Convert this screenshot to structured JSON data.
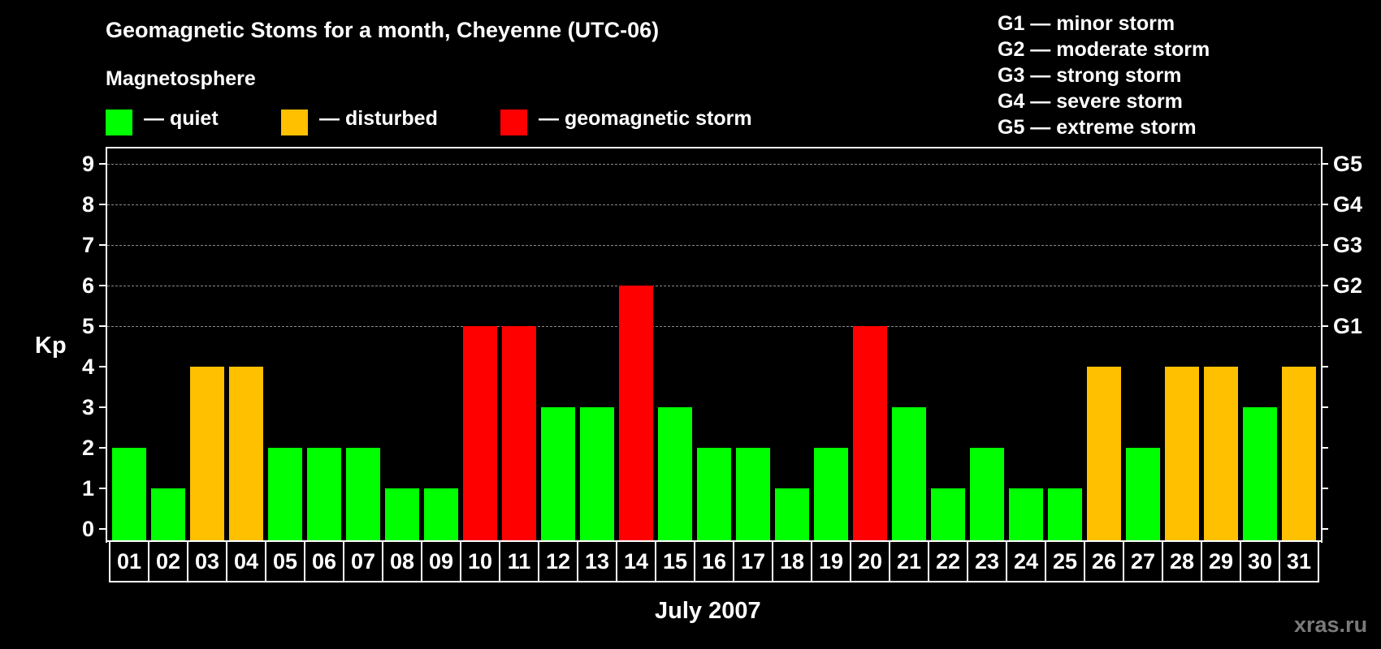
{
  "title": "Geomagnetic Stoms for a month, Cheyenne (UTC-06)",
  "legend": {
    "heading": "Magnetosphere",
    "items": [
      {
        "label": "— quiet",
        "color": "#00ff00"
      },
      {
        "label": "— disturbed",
        "color": "#ffc000"
      },
      {
        "label": "— geomagnetic storm",
        "color": "#ff0000"
      }
    ]
  },
  "storm_scale": [
    "G1 — minor storm",
    "G2 — moderate storm",
    "G3 — strong storm",
    "G4 — severe storm",
    "G5 — extreme storm"
  ],
  "axes": {
    "ylabel": "Kp",
    "xlabel": "July 2007",
    "yticks": [
      "0",
      "1",
      "2",
      "3",
      "4",
      "5",
      "6",
      "7",
      "8",
      "9"
    ],
    "right_ticks": [
      {
        "value": 5,
        "label": "G1"
      },
      {
        "value": 6,
        "label": "G2"
      },
      {
        "value": 7,
        "label": "G3"
      },
      {
        "value": 8,
        "label": "G4"
      },
      {
        "value": 9,
        "label": "G5"
      }
    ]
  },
  "watermark": "xras.ru",
  "colors": {
    "quiet": "#00ff00",
    "disturbed": "#ffc000",
    "storm": "#ff0000",
    "background": "#000000",
    "grid": "#8a8a8a"
  },
  "chart_data": {
    "type": "bar",
    "title": "Geomagnetic Stoms for a month, Cheyenne (UTC-06)",
    "xlabel": "July 2007",
    "ylabel": "Kp",
    "ylim": [
      0,
      9
    ],
    "grid": true,
    "categories": [
      "01",
      "02",
      "03",
      "04",
      "05",
      "06",
      "07",
      "08",
      "09",
      "10",
      "11",
      "12",
      "13",
      "14",
      "15",
      "16",
      "17",
      "18",
      "19",
      "20",
      "21",
      "22",
      "23",
      "24",
      "25",
      "26",
      "27",
      "28",
      "29",
      "30",
      "31"
    ],
    "values": [
      2,
      1,
      4,
      4,
      2,
      2,
      2,
      1,
      1,
      5,
      5,
      3,
      3,
      6,
      3,
      2,
      2,
      1,
      2,
      5,
      3,
      1,
      2,
      1,
      1,
      4,
      2,
      4,
      4,
      3,
      4
    ],
    "status": [
      "quiet",
      "quiet",
      "disturbed",
      "disturbed",
      "quiet",
      "quiet",
      "quiet",
      "quiet",
      "quiet",
      "storm",
      "storm",
      "quiet",
      "quiet",
      "storm",
      "quiet",
      "quiet",
      "quiet",
      "quiet",
      "quiet",
      "storm",
      "quiet",
      "quiet",
      "quiet",
      "quiet",
      "quiet",
      "disturbed",
      "quiet",
      "disturbed",
      "disturbed",
      "quiet",
      "disturbed"
    ],
    "legend": [
      "quiet",
      "disturbed",
      "geomagnetic storm"
    ],
    "secondary_axis": {
      "G1": 5,
      "G2": 6,
      "G3": 7,
      "G4": 8,
      "G5": 9
    }
  }
}
